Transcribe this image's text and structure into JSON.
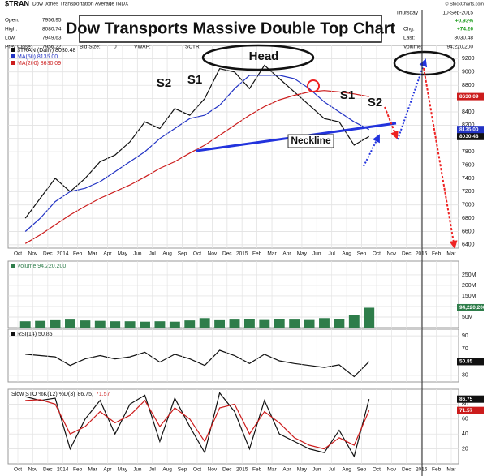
{
  "header": {
    "symbol": "$TRAN",
    "name": "Dow Jones Transportation Average INDX",
    "copyright": "© StockCharts.com",
    "stats": [
      {
        "label": "Open:",
        "value": 7956.95
      },
      {
        "label": "High:",
        "value": 8080.74
      },
      {
        "label": "Low:",
        "value": 7949.63
      },
      {
        "label": "Prev Close:",
        "value": 7956.22
      }
    ],
    "stats2": [
      {
        "label": "Bid Size:",
        "value": 0
      },
      {
        "label": "VWAP:"
      },
      {
        "label": "SCTR:"
      }
    ],
    "day": "Thursday",
    "date": "10-Sep-2015",
    "chg_label": "Chg:",
    "chg_pct": "+0.93%",
    "chg": "+74.26",
    "last_label": "Last:",
    "last": 8030.48,
    "volume_label": "Volume:",
    "volume": "94,220,200"
  },
  "title_box": "Dow Transports Massive Double Top Chart",
  "annotations": [
    "S2",
    "S1",
    "Head",
    "S1",
    "S2",
    "Neckline"
  ],
  "chart_data": [
    {
      "type": "line",
      "x": [
        "2013-10",
        "2013-11",
        "2013-12",
        "2014-01",
        "2014-02",
        "2014-03",
        "2014-04",
        "2014-05",
        "2014-06",
        "2014-07",
        "2014-08",
        "2014-09",
        "2014-10",
        "2014-11",
        "2014-12",
        "2015-01",
        "2015-02",
        "2015-03",
        "2015-04",
        "2015-05",
        "2015-06",
        "2015-07",
        "2015-08",
        "2015-09"
      ],
      "xlim": [
        "2013-10",
        "2016-03"
      ],
      "xticks": [
        {
          "value": "2013-10",
          "label": "Oct"
        },
        {
          "value": "2013-11",
          "label": "Nov"
        },
        {
          "value": "2013-12",
          "label": "Dec"
        },
        {
          "value": "2014-01",
          "label": "2014"
        },
        {
          "value": "2014-02",
          "label": "Feb"
        },
        {
          "value": "2014-03",
          "label": "Mar"
        },
        {
          "value": "2014-04",
          "label": "Apr"
        },
        {
          "value": "2014-05",
          "label": "May"
        },
        {
          "value": "2014-06",
          "label": "Jun"
        },
        {
          "value": "2014-07",
          "label": "Jul"
        },
        {
          "value": "2014-08",
          "label": "Aug"
        },
        {
          "value": "2014-09",
          "label": "Sep"
        },
        {
          "value": "2014-10",
          "label": "Oct"
        },
        {
          "value": "2014-11",
          "label": "Nov"
        },
        {
          "value": "2014-12",
          "label": "Dec"
        },
        {
          "value": "2015-01",
          "label": "2015"
        },
        {
          "value": "2015-02",
          "label": "Feb"
        },
        {
          "value": "2015-03",
          "label": "Mar"
        },
        {
          "value": "2015-04",
          "label": "Apr"
        },
        {
          "value": "2015-05",
          "label": "May"
        },
        {
          "value": "2015-06",
          "label": "Jun"
        },
        {
          "value": "2015-07",
          "label": "Jul"
        },
        {
          "value": "2015-08",
          "label": "Aug"
        },
        {
          "value": "2015-09",
          "label": "Sep"
        },
        {
          "value": "2015-10",
          "label": "Oct"
        },
        {
          "value": "2015-11",
          "label": "Nov"
        },
        {
          "value": "2015-12",
          "label": "Dec"
        },
        {
          "value": "2016-01",
          "label": "2016"
        },
        {
          "value": "2016-02",
          "label": "Feb"
        },
        {
          "value": "2016-03",
          "label": "Mar"
        }
      ],
      "ylim": [
        6350,
        9400
      ],
      "yticks": [
        6400,
        6600,
        6800,
        7000,
        7200,
        7400,
        7600,
        7800,
        8000,
        8200,
        8400,
        8600,
        8800,
        9000,
        9200
      ],
      "grid": true,
      "series": [
        {
          "name": "$TRAN (Daily) 8030.48",
          "color": "#111111",
          "values": [
            6800,
            7100,
            7400,
            7200,
            7400,
            7650,
            7750,
            7950,
            8250,
            8150,
            8450,
            8350,
            8600,
            9050,
            9000,
            8750,
            9100,
            8900,
            8700,
            8500,
            8300,
            8250,
            7900,
            8030.48
          ]
        },
        {
          "name": "MA(50) 8135.00",
          "color": "#2233c4",
          "values": [
            6600,
            6800,
            7050,
            7200,
            7250,
            7350,
            7500,
            7650,
            7800,
            8000,
            8150,
            8300,
            8350,
            8500,
            8750,
            8950,
            8950,
            8950,
            8900,
            8750,
            8550,
            8400,
            8250,
            8135
          ],
          "value_labels": [
            null,
            null,
            null,
            null,
            null,
            null,
            null,
            null,
            null,
            null,
            null,
            null,
            null,
            null,
            null,
            null,
            null,
            null,
            null,
            null,
            null,
            null,
            null,
            "8135.00"
          ]
        },
        {
          "name": "MA(200) 8630.09",
          "color": "#cc1c1c",
          "values": [
            6420,
            6550,
            6700,
            6850,
            6980,
            7100,
            7200,
            7300,
            7420,
            7550,
            7650,
            7780,
            7900,
            8050,
            8200,
            8350,
            8480,
            8580,
            8650,
            8700,
            8720,
            8700,
            8670,
            8630.09
          ]
        }
      ]
    },
    {
      "type": "bar",
      "x": [
        "2013-10",
        "2013-11",
        "2013-12",
        "2014-01",
        "2014-02",
        "2014-03",
        "2014-04",
        "2014-05",
        "2014-06",
        "2014-07",
        "2014-08",
        "2014-09",
        "2014-10",
        "2014-11",
        "2014-12",
        "2015-01",
        "2015-02",
        "2015-03",
        "2015-04",
        "2015-05",
        "2015-06",
        "2015-07",
        "2015-08",
        "2015-09"
      ],
      "xlim": [
        "2013-10",
        "2016-03"
      ],
      "ylim": [
        0,
        315
      ],
      "yticks": [
        {
          "value": 50,
          "label": "50M"
        },
        {
          "value": 100,
          "label": "100M"
        },
        {
          "value": 150,
          "label": "150M"
        },
        {
          "value": 200,
          "label": "200M"
        },
        {
          "value": 250,
          "label": "250M"
        }
      ],
      "grid": true,
      "series": [
        {
          "name": "Volume 94,220,200",
          "color": "#2e7d4a",
          "values": [
            30,
            32,
            35,
            38,
            34,
            32,
            30,
            30,
            28,
            30,
            28,
            34,
            45,
            35,
            38,
            42,
            36,
            40,
            38,
            36,
            45,
            40,
            60,
            94.2202
          ],
          "value_labels": [
            null,
            null,
            null,
            null,
            null,
            null,
            null,
            null,
            null,
            null,
            null,
            null,
            null,
            null,
            null,
            null,
            null,
            null,
            null,
            null,
            null,
            null,
            null,
            "94,220,200"
          ]
        }
      ]
    },
    {
      "type": "line",
      "x": [
        "2013-10",
        "2013-11",
        "2013-12",
        "2014-01",
        "2014-02",
        "2014-03",
        "2014-04",
        "2014-05",
        "2014-06",
        "2014-07",
        "2014-08",
        "2014-09",
        "2014-10",
        "2014-11",
        "2014-12",
        "2015-01",
        "2015-02",
        "2015-03",
        "2015-04",
        "2015-05",
        "2015-06",
        "2015-07",
        "2015-08",
        "2015-09"
      ],
      "xlim": [
        "2013-10",
        "2016-03"
      ],
      "ylim": [
        20,
        100
      ],
      "yticks": [
        30,
        50,
        70,
        90
      ],
      "grid": true,
      "series": [
        {
          "name": "RSI(14) 50.85",
          "color": "#111111",
          "values": [
            62,
            60,
            58,
            45,
            55,
            60,
            55,
            58,
            65,
            50,
            62,
            55,
            45,
            68,
            60,
            48,
            62,
            52,
            48,
            45,
            42,
            46,
            28,
            50.85
          ]
        }
      ]
    },
    {
      "type": "line",
      "title": "Slow STO %K(12) %D(3)",
      "x": [
        "2013-10",
        "2013-11",
        "2013-12",
        "2014-01",
        "2014-02",
        "2014-03",
        "2014-04",
        "2014-05",
        "2014-06",
        "2014-07",
        "2014-08",
        "2014-09",
        "2014-10",
        "2014-11",
        "2014-12",
        "2015-01",
        "2015-02",
        "2015-03",
        "2015-04",
        "2015-05",
        "2015-06",
        "2015-07",
        "2015-08",
        "2015-09"
      ],
      "xlim": [
        "2013-10",
        "2016-03"
      ],
      "xticks": [
        {
          "value": "2013-10",
          "label": "Oct"
        },
        {
          "value": "2013-11",
          "label": "Nov"
        },
        {
          "value": "2013-12",
          "label": "Dec"
        },
        {
          "value": "2014-01",
          "label": "2014"
        },
        {
          "value": "2014-02",
          "label": "Feb"
        },
        {
          "value": "2014-03",
          "label": "Mar"
        },
        {
          "value": "2014-04",
          "label": "Apr"
        },
        {
          "value": "2014-05",
          "label": "May"
        },
        {
          "value": "2014-06",
          "label": "Jun"
        },
        {
          "value": "2014-07",
          "label": "Jul"
        },
        {
          "value": "2014-08",
          "label": "Aug"
        },
        {
          "value": "2014-09",
          "label": "Sep"
        },
        {
          "value": "2014-10",
          "label": "Oct"
        },
        {
          "value": "2014-11",
          "label": "Nov"
        },
        {
          "value": "2014-12",
          "label": "Dec"
        },
        {
          "value": "2015-01",
          "label": "2015"
        },
        {
          "value": "2015-02",
          "label": "Feb"
        },
        {
          "value": "2015-03",
          "label": "Mar"
        },
        {
          "value": "2015-04",
          "label": "Apr"
        },
        {
          "value": "2015-05",
          "label": "May"
        },
        {
          "value": "2015-06",
          "label": "Jun"
        },
        {
          "value": "2015-07",
          "label": "Jul"
        },
        {
          "value": "2015-08",
          "label": "Aug"
        },
        {
          "value": "2015-09",
          "label": "Sep"
        },
        {
          "value": "2015-10",
          "label": "Oct"
        },
        {
          "value": "2015-11",
          "label": "Nov"
        },
        {
          "value": "2015-12",
          "label": "Dec"
        },
        {
          "value": "2016-01",
          "label": "2016"
        },
        {
          "value": "2016-02",
          "label": "Feb"
        },
        {
          "value": "2016-03",
          "label": "Mar"
        }
      ],
      "ylim": [
        0,
        100
      ],
      "yticks": [
        20,
        40,
        60,
        80
      ],
      "grid": true,
      "series": [
        {
          "name": "86.75,",
          "color": "#111111",
          "values": [
            90,
            85,
            88,
            20,
            60,
            85,
            40,
            80,
            92,
            30,
            88,
            50,
            15,
            95,
            70,
            20,
            85,
            40,
            30,
            20,
            15,
            45,
            10,
            86.75
          ]
        },
        {
          "name": "71.57",
          "color": "#cc1c1c",
          "values": [
            85,
            86,
            80,
            40,
            50,
            70,
            55,
            65,
            85,
            50,
            75,
            60,
            30,
            75,
            80,
            40,
            70,
            55,
            35,
            25,
            20,
            35,
            25,
            71.57
          ]
        }
      ]
    }
  ]
}
